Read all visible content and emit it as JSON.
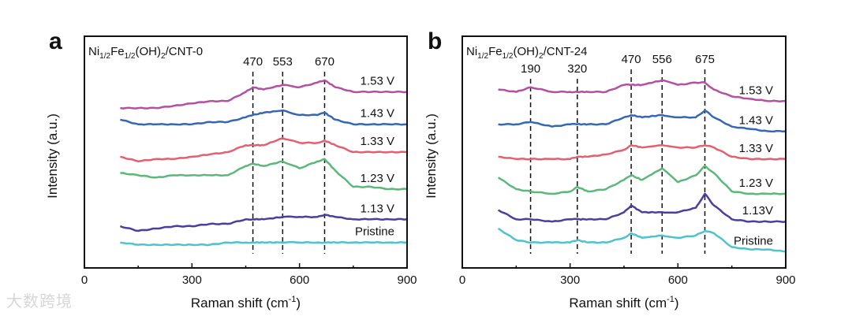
{
  "watermark": "大数跨境",
  "chart_data": [
    {
      "type": "line",
      "panel_letter": "a",
      "title": "Ni1/2Fe1/2(OH)2/CNT-0",
      "title_parts": [
        "Ni",
        "1/2",
        "Fe",
        "1/2",
        "(OH)",
        "2",
        "/CNT-0"
      ],
      "xlabel": "Raman shift (cm",
      "xlabel_sup": "-1",
      "xlabel_end": ")",
      "ylabel": "Intensity (a.u.)",
      "xlim": [
        0,
        900
      ],
      "ylim": [
        0,
        100
      ],
      "xticks": [
        0,
        300,
        600,
        900
      ],
      "peak_markers": [
        470,
        553,
        670
      ],
      "peak_marker_labels": [
        "470",
        "553",
        "670"
      ],
      "x": [
        100,
        150,
        200,
        250,
        300,
        350,
        400,
        450,
        470,
        500,
        553,
        600,
        650,
        670,
        700,
        750,
        800,
        850,
        900
      ],
      "series": [
        {
          "name": "1.53 V",
          "color": "#b44fa3",
          "values": [
            69,
            69,
            69,
            70,
            71,
            72,
            72,
            76,
            78,
            77,
            79,
            78,
            80,
            81,
            78,
            76,
            76,
            76,
            76
          ]
        },
        {
          "name": "1.43 V",
          "color": "#3567b5",
          "values": [
            64,
            62,
            62,
            62,
            62,
            63,
            63,
            65,
            66,
            67,
            68,
            66,
            66,
            67,
            64,
            62,
            62,
            62,
            62
          ]
        },
        {
          "name": "1.33 V",
          "color": "#e4606e",
          "values": [
            48,
            46,
            47,
            47,
            48,
            49,
            50,
            53,
            53,
            53,
            56,
            54,
            54,
            55,
            53,
            50,
            50,
            50,
            50
          ]
        },
        {
          "name": "1.23 V",
          "color": "#5cb878",
          "values": [
            41,
            40,
            39,
            40,
            40,
            40,
            40,
            44,
            45,
            44,
            46,
            43,
            46,
            47,
            42,
            35,
            35,
            34,
            34
          ]
        },
        {
          "name": "1.13 V",
          "color": "#4a3f9e",
          "values": [
            18,
            16,
            17,
            18,
            18,
            19,
            19,
            21,
            21,
            21,
            22,
            22,
            22,
            23,
            22,
            21,
            21,
            21,
            21
          ]
        },
        {
          "name": "Pristine",
          "color": "#4fc3cc",
          "values": [
            11,
            10,
            10,
            10,
            10,
            10,
            11,
            11,
            11,
            11,
            11,
            11,
            11,
            11,
            11,
            11,
            11,
            11,
            11
          ]
        }
      ]
    },
    {
      "type": "line",
      "panel_letter": "b",
      "title": "Ni1/2Fe1/2(OH)2/CNT-24",
      "title_parts": [
        "Ni",
        "1/2",
        "Fe",
        "1/2",
        "(OH)",
        "2",
        "/CNT-24"
      ],
      "xlabel": "Raman shift (cm",
      "xlabel_sup": "-1",
      "xlabel_end": ")",
      "ylabel": "Intensity (a.u.)",
      "xlim": [
        0,
        900
      ],
      "ylim": [
        0,
        100
      ],
      "xticks": [
        0,
        300,
        600,
        900
      ],
      "peak_markers": [
        190,
        320,
        470,
        556,
        675
      ],
      "peak_marker_labels": [
        "190",
        "320",
        "470",
        "556",
        "675"
      ],
      "x": [
        100,
        150,
        190,
        250,
        300,
        320,
        350,
        400,
        450,
        470,
        500,
        556,
        600,
        650,
        675,
        700,
        750,
        800,
        850,
        900
      ],
      "series": [
        {
          "name": "1.53 V",
          "color": "#b44fa3",
          "values": [
            77,
            76,
            78,
            76,
            76,
            76,
            76,
            76,
            79,
            79,
            79,
            81,
            79,
            80,
            80,
            77,
            74,
            73,
            72,
            72
          ]
        },
        {
          "name": "1.43 V",
          "color": "#3567b5",
          "values": [
            62,
            62,
            63,
            61,
            62,
            62,
            62,
            62,
            65,
            66,
            65,
            66,
            65,
            65,
            68,
            65,
            61,
            60,
            59,
            59
          ]
        },
        {
          "name": "1.33 V",
          "color": "#e4606e",
          "values": [
            48,
            47,
            47,
            47,
            47,
            48,
            48,
            49,
            51,
            53,
            52,
            53,
            52,
            52,
            53,
            52,
            48,
            47,
            47,
            47
          ]
        },
        {
          "name": "1.23 V",
          "color": "#5cb878",
          "values": [
            39,
            34,
            33,
            32,
            33,
            35,
            33,
            34,
            38,
            40,
            38,
            43,
            37,
            40,
            44,
            41,
            33,
            32,
            32,
            32
          ]
        },
        {
          "name": "1.13V",
          "color": "#4a3f9e",
          "values": [
            25,
            21,
            21,
            20,
            21,
            21,
            21,
            21,
            24,
            27,
            24,
            24,
            24,
            26,
            32,
            27,
            21,
            20,
            20,
            20
          ]
        },
        {
          "name": "Pristine",
          "color": "#4fc3cc",
          "values": [
            17,
            12,
            11,
            11,
            11,
            12,
            11,
            11,
            13,
            15,
            13,
            14,
            13,
            14,
            16,
            15,
            9,
            8,
            8,
            7
          ]
        }
      ]
    }
  ]
}
